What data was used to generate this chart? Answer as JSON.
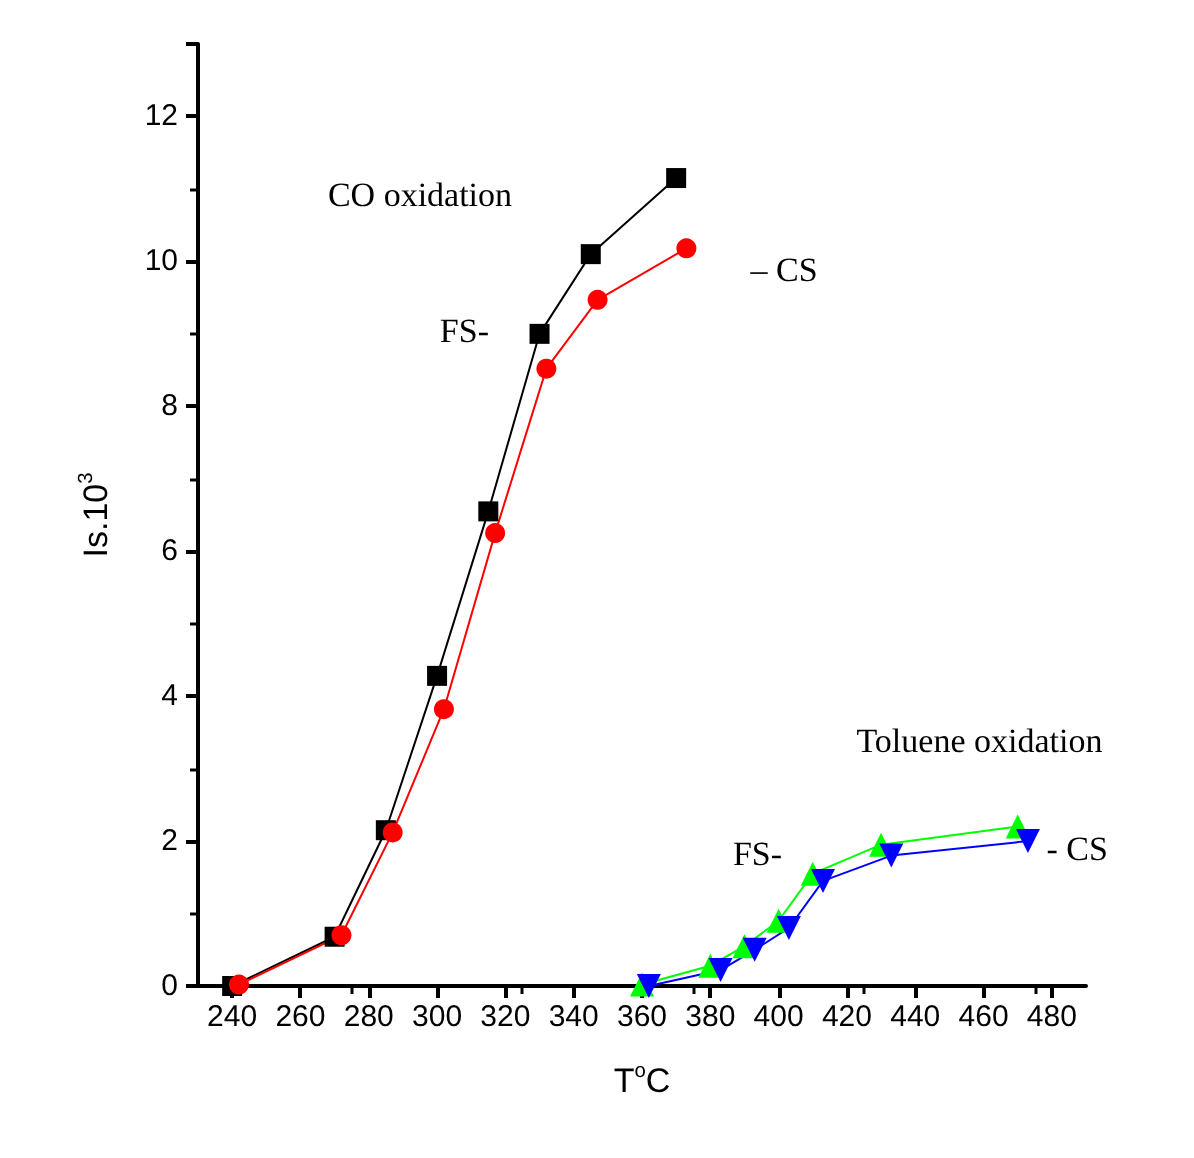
{
  "chart_data": {
    "type": "line",
    "xlabel": "T$^{o}$C",
    "ylabel": "Is.10$^{3}$",
    "xlim": [
      230,
      490
    ],
    "ylim": [
      0,
      13
    ],
    "xticks": [
      240,
      260,
      280,
      300,
      320,
      340,
      360,
      380,
      400,
      420,
      440,
      460,
      480
    ],
    "yticks": [
      0,
      2,
      4,
      6,
      8,
      10,
      12
    ],
    "series": [
      {
        "color": "#000000",
        "marker": "square",
        "x": [
          240,
          270,
          285,
          300,
          315,
          330,
          345,
          370
        ],
        "values": [
          0,
          0.68,
          2.15,
          4.28,
          6.55,
          9.0,
          10.1,
          11.15
        ]
      },
      {
        "color": "#ff0000",
        "marker": "circle",
        "x": [
          242,
          272,
          287,
          302,
          317,
          332,
          347,
          373
        ],
        "values": [
          0.02,
          0.7,
          2.12,
          3.82,
          6.25,
          8.52,
          9.47,
          10.18
        ]
      },
      {
        "color": "#00ff00",
        "marker": "triangle",
        "x": [
          360,
          380,
          390,
          400,
          410,
          430,
          470
        ],
        "values": [
          0.02,
          0.28,
          0.55,
          0.9,
          1.55,
          1.95,
          2.2
        ]
      },
      {
        "color": "#0000ff",
        "marker": "triangle-down",
        "x": [
          362,
          383,
          393,
          403,
          413,
          433,
          473
        ],
        "values": [
          0,
          0.22,
          0.5,
          0.8,
          1.45,
          1.8,
          2.0
        ]
      }
    ],
    "annotations": [
      "CO oxidation",
      "FS-",
      "– CS",
      "Toluene oxidation",
      "FS-",
      "- CS"
    ]
  }
}
